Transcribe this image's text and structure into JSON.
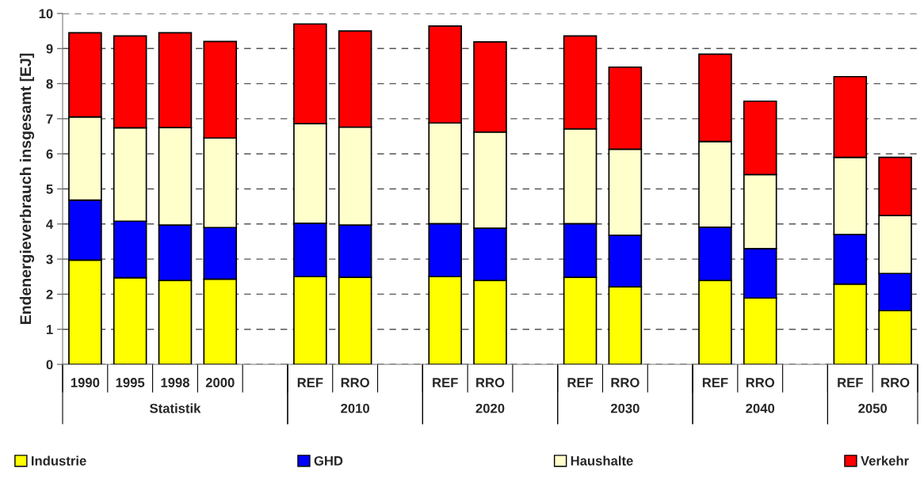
{
  "chart_data": {
    "type": "bar",
    "stacked": true,
    "ylabel": "Endenergieverbrauch insgesamt [EJ]",
    "categories": [
      "1990",
      "1995",
      "1998",
      "2000",
      null,
      "REF",
      "RRO",
      null,
      "REF",
      "RRO",
      null,
      "REF",
      "RRO",
      null,
      "REF",
      "RRO",
      null,
      "REF",
      "RRO"
    ],
    "series": [
      {
        "name": "Industrie",
        "color": "#ffff00",
        "values": [
          2.97,
          2.47,
          2.39,
          2.43,
          null,
          2.5,
          2.48,
          null,
          2.5,
          2.39,
          null,
          2.48,
          2.21,
          null,
          2.39,
          1.89,
          null,
          2.29,
          1.53
        ]
      },
      {
        "name": "GHD",
        "color": "#0000ff",
        "values": [
          1.71,
          1.61,
          1.58,
          1.47,
          null,
          1.52,
          1.49,
          null,
          1.51,
          1.49,
          null,
          1.53,
          1.47,
          null,
          1.52,
          1.41,
          null,
          1.41,
          1.06
        ]
      },
      {
        "name": "Haushalte",
        "color": "#ffffcc",
        "values": [
          2.37,
          2.66,
          2.78,
          2.55,
          null,
          2.84,
          2.79,
          null,
          2.87,
          2.74,
          null,
          2.7,
          2.45,
          null,
          2.44,
          2.11,
          null,
          2.2,
          1.65
        ]
      },
      {
        "name": "Verkehr",
        "color": "#ff0000",
        "values": [
          2.4,
          2.62,
          2.7,
          2.75,
          null,
          2.84,
          2.74,
          null,
          2.76,
          2.57,
          null,
          2.65,
          2.34,
          null,
          2.49,
          2.09,
          null,
          2.3,
          1.66
        ]
      }
    ],
    "annotations": [
      "Statistik",
      "2010",
      "2020",
      "2030",
      "2040",
      "2050"
    ],
    "ylim": [
      0,
      10
    ],
    "yticks": [
      0,
      1,
      2,
      3,
      4,
      5,
      6,
      7,
      8,
      9,
      10
    ],
    "grid": "y",
    "legend": "bottom"
  }
}
